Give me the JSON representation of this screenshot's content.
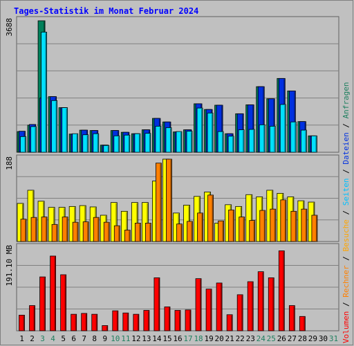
{
  "chart_data": {
    "type": "bar",
    "title": "Tages-Statistik im Monat Februar 2024",
    "days": [
      "1",
      "2",
      "3",
      "4",
      "5",
      "6",
      "7",
      "8",
      "9",
      "10",
      "11",
      "12",
      "13",
      "14",
      "15",
      "16",
      "17",
      "18",
      "19",
      "20",
      "21",
      "22",
      "23",
      "24",
      "25",
      "26",
      "27",
      "28",
      "29",
      "30",
      "31"
    ],
    "weekend_days": [
      "3",
      "4",
      "10",
      "11",
      "17",
      "18",
      "24",
      "25",
      "31"
    ],
    "panels": {
      "top": {
        "max_label": "3688",
        "ymax": 3688,
        "series": [
          {
            "name": "Anfragen",
            "color": "#00805a",
            "values": [
              580,
              760,
              3688,
              1560,
              1250,
              510,
              620,
              610,
              200,
              610,
              560,
              520,
              630,
              950,
              850,
              570,
              630,
              1360,
              1200,
              1320,
              520,
              1080,
              1330,
              1840,
              1500,
              2070,
              1720,
              860,
              460,
              null,
              null
            ]
          },
          {
            "name": "Dateien",
            "color": "#0030e0",
            "values": [
              590,
              780,
              1520,
              1560,
              1250,
              510,
              620,
              610,
              200,
              610,
              560,
              520,
              630,
              950,
              850,
              570,
              630,
              1360,
              1200,
              1320,
              520,
              1080,
              1330,
              1840,
              1500,
              2070,
              1720,
              860,
              460,
              null,
              null
            ]
          },
          {
            "name": "Seiten",
            "color": "#00e0ff",
            "values": [
              440,
              720,
              3370,
              1450,
              1250,
              520,
              490,
              520,
              190,
              460,
              480,
              520,
              530,
              730,
              690,
              580,
              590,
              1240,
              1100,
              580,
              450,
              630,
              640,
              770,
              730,
              1340,
              850,
              620,
              460,
              null,
              null
            ]
          }
        ]
      },
      "middle": {
        "max_label": "188",
        "ymax": 188,
        "series": [
          {
            "name": "Besuche",
            "color": "#ffff00",
            "values": [
              87,
              117,
              92,
              78,
              78,
              80,
              82,
              79,
              60,
              89,
              69,
              89,
              89,
              138,
              188,
              65,
              83,
              103,
              113,
              42,
              84,
              80,
              107,
              102,
              117,
              110,
              102,
              93,
              90,
              null,
              null
            ]
          },
          {
            "name": "Rechner",
            "color": "#ff8000",
            "values": [
              51,
              55,
              56,
              39,
              56,
              44,
              45,
              55,
              44,
              36,
              26,
              42,
              42,
              179,
              188,
              40,
              46,
              65,
              106,
              47,
              72,
              56,
              48,
              71,
              74,
              95,
              69,
              74,
              60,
              null,
              null
            ]
          }
        ]
      },
      "bottom": {
        "max_label": "191.10 MB",
        "ymax": 191.1,
        "series": [
          {
            "name": "Volumen",
            "color": "#ff0000",
            "values": [
              36,
              58,
              124,
              172,
              129,
              38,
              40,
              38,
              12,
              46,
              41,
              38,
              47,
              122,
              55,
              47,
              48,
              120,
              96,
              110,
              37,
              83,
              113,
              136,
              122,
              184,
              58,
              33,
              null,
              null,
              null
            ]
          }
        ]
      }
    },
    "legend_separator": " / "
  }
}
